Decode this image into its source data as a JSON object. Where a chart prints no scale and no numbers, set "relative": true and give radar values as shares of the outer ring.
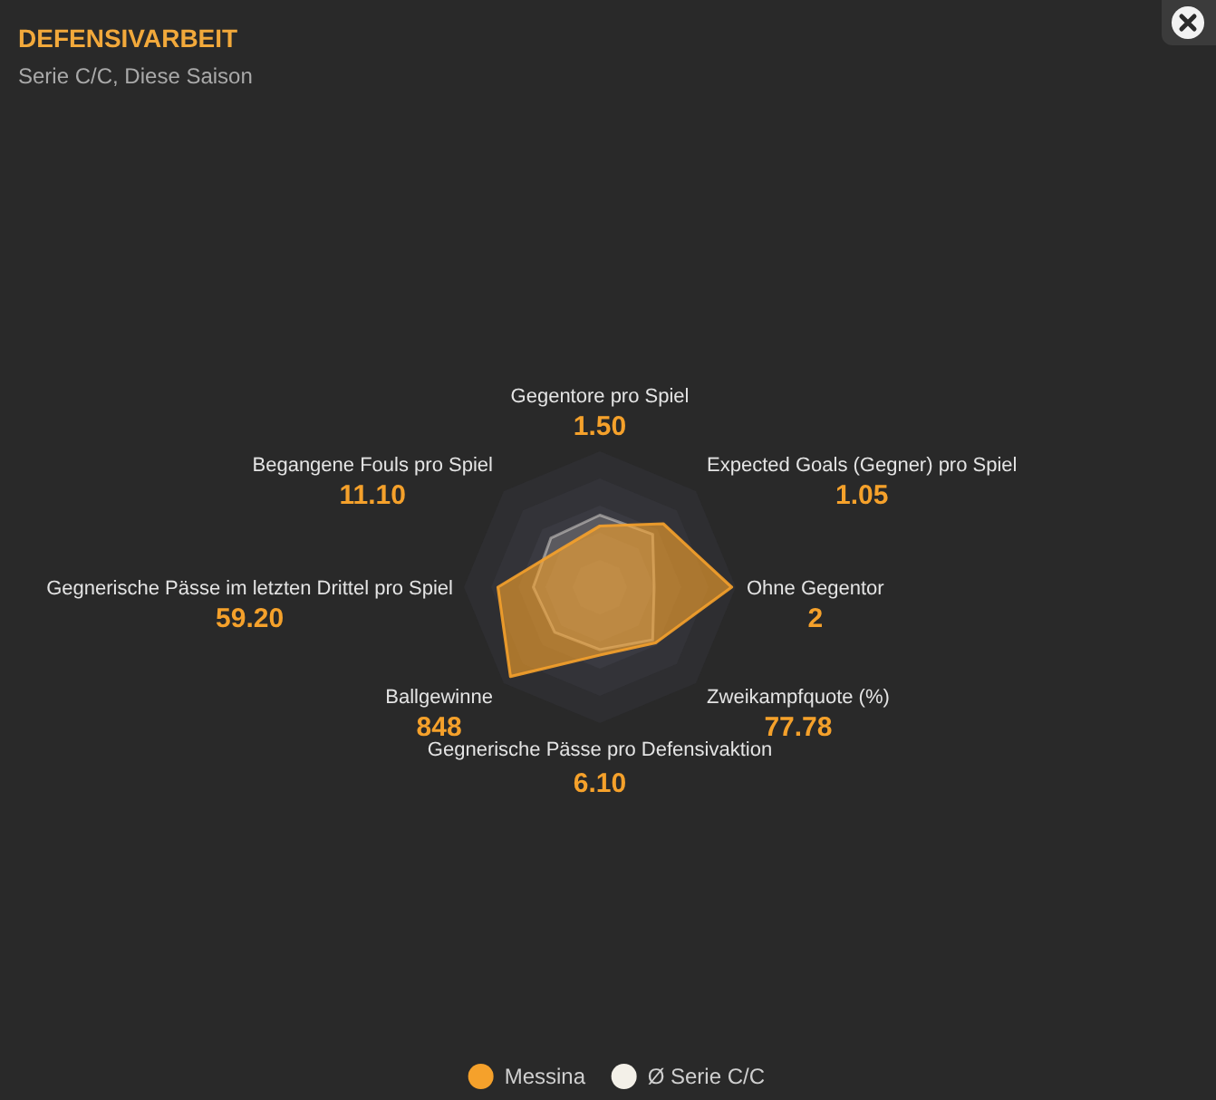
{
  "chart_data": {
    "type": "radar",
    "title": "DEFENSIVARBEIT",
    "subtitle": "Serie C/C, Diese Saison",
    "categories": [
      "Gegentore pro Spiel",
      "Expected Goals (Gegner) pro Spiel",
      "Ohne Gegentor",
      "Zweikampfquote (%)",
      "Gegnerische Pässe pro Defensivaktion",
      "Ballgewinne",
      "Gegnerische Pässe im letzten Drittel pro Spiel",
      "Begangene Fouls pro Spiel"
    ],
    "relative": true,
    "series": [
      {
        "name": "Messina",
        "color": "#f5a12b",
        "values": [
          0.45,
          0.66,
          0.97,
          0.58,
          0.5,
          0.93,
          0.75,
          0.4
        ]
      },
      {
        "name": "Ø Serie C/C",
        "color": "#f3f0e8",
        "values": [
          0.53,
          0.55,
          0.4,
          0.55,
          0.46,
          0.47,
          0.49,
          0.51
        ]
      }
    ],
    "annotations": [
      {
        "text": "1.50",
        "x": "Gegentore pro Spiel"
      },
      {
        "text": "1.05",
        "x": "Expected Goals (Gegner) pro Spiel"
      },
      {
        "text": "2",
        "x": "Ohne Gegentor"
      },
      {
        "text": "77.78",
        "x": "Zweikampfquote (%)"
      },
      {
        "text": "6.10",
        "x": "Gegnerische Pässe pro Defensivaktion"
      },
      {
        "text": "848",
        "x": "Ballgewinne"
      },
      {
        "text": "59.20",
        "x": "Gegnerische Pässe im letzten Drittel pro Spiel"
      },
      {
        "text": "11.10",
        "x": "Begangene Fouls pro Spiel"
      }
    ],
    "grid": true,
    "legend": "bottom"
  }
}
